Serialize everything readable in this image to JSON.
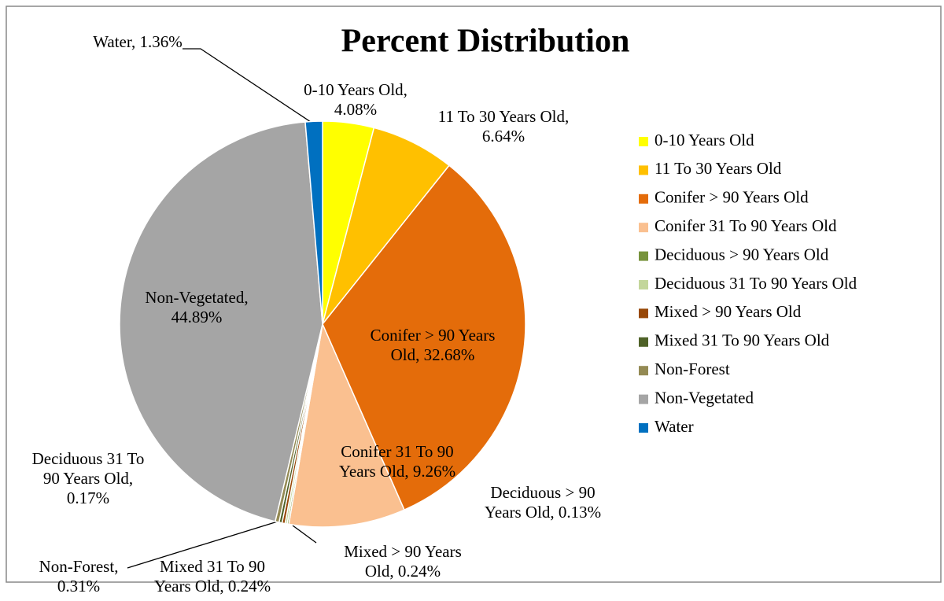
{
  "chart_data": {
    "type": "pie",
    "title": "Percent Distribution",
    "categories": [
      "0-10 Years Old",
      "11 To 30 Years Old",
      "Conifer > 90 Years Old",
      "Conifer 31 To 90 Years Old",
      "Deciduous > 90 Years Old",
      "Deciduous 31 To 90 Years Old",
      "Mixed > 90 Years Old",
      "Mixed 31 To 90 Years Old",
      "Non-Forest",
      "Non-Vegetated",
      "Water"
    ],
    "values": [
      4.08,
      6.64,
      32.68,
      9.26,
      0.13,
      0.17,
      0.24,
      0.24,
      0.31,
      44.89,
      1.36
    ],
    "value_labels": [
      "0-10 Years Old, 4.08%",
      "11 To 30 Years Old, 6.64%",
      "Conifer > 90 Years Old, 32.68%",
      "Conifer 31 To 90 Years Old, 9.26%",
      "Deciduous > 90 Years Old, 0.13%",
      "Deciduous 31 To 90 Years Old, 0.17%",
      "Mixed > 90 Years Old, 0.24%",
      "Mixed 31 To 90 Years Old, 0.24%",
      "Non-Forest, 0.31%",
      "Non-Vegetated, 44.89%",
      "Water, 1.36%"
    ],
    "colors": [
      "#ffff00",
      "#ffc000",
      "#e46c0a",
      "#fac090",
      "#77933c",
      "#c3d69b",
      "#984807",
      "#4f6228",
      "#948a54",
      "#a5a5a5",
      "#0070c0"
    ],
    "legend": "right"
  }
}
